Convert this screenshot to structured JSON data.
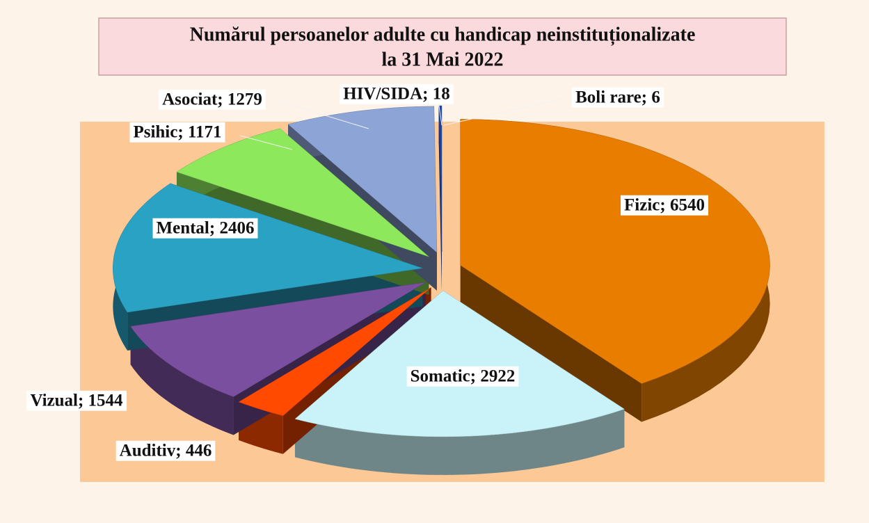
{
  "chart_data": {
    "type": "pie",
    "title": [
      "Numărul persoanelor adulte cu handicap neinstituționalizate",
      "la  31 Mai 2022"
    ],
    "values": [
      6540,
      2922,
      446,
      1544,
      2406,
      1171,
      1279,
      18,
      6
    ],
    "value_labels": [
      "Fizic; 6540",
      "Somatic; 2922",
      "Auditiv; 446",
      "Vizual; 1544",
      "Mental; 2406",
      "Psihic; 1171",
      "Asociat; 1279",
      "HIV/SIDA; 18",
      "Boli rare; 6"
    ],
    "colors": [
      "#e87d00",
      "#c9f3f8",
      "#ff4a00",
      "#7a4fa0",
      "#2aa2c4",
      "#8de85c",
      "#8da4d6",
      "#1f3fae",
      "#2a5aa8"
    ]
  }
}
